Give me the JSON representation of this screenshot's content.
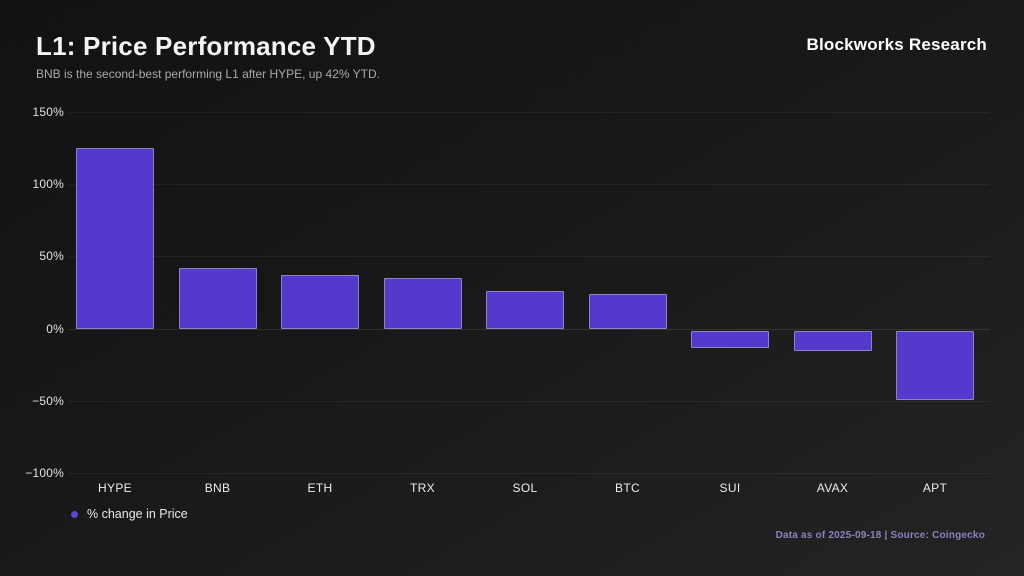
{
  "header": {
    "title": "L1: Price Performance YTD",
    "subtitle": "BNB is the second-best performing L1 after HYPE, up 42% YTD.",
    "brand": "Blockworks Research"
  },
  "legend": {
    "label": "% change in Price",
    "marker_color": "#5b45d4"
  },
  "footer": {
    "note": "Data as of 2025-09-18 | Source: Coingecko"
  },
  "colors": {
    "bar_fill": "#5538cc",
    "bar_border": "#bebebe",
    "background_dark": "#141414",
    "background_light": "#242424",
    "footer_text": "#8a83bd"
  },
  "chart_data": {
    "type": "bar",
    "title": "L1: Price Performance YTD",
    "xlabel": "",
    "ylabel": "% change in Price",
    "categories": [
      "HYPE",
      "BNB",
      "ETH",
      "TRX",
      "SOL",
      "BTC",
      "SUI",
      "AVAX",
      "APT"
    ],
    "values": [
      125,
      42,
      37,
      35,
      26,
      24,
      -12,
      -14,
      -48
    ],
    "unit": "%",
    "ylim": [
      -100,
      150
    ],
    "yticks": [
      {
        "value": 150,
        "label": "150%"
      },
      {
        "value": 100,
        "label": "100%"
      },
      {
        "value": 50,
        "label": "50%"
      },
      {
        "value": 0,
        "label": "0%"
      },
      {
        "value": -50,
        "label": "−50%"
      },
      {
        "value": -100,
        "label": "−100%"
      }
    ],
    "grid": true,
    "legend_position": "bottom-left",
    "series_color": "#5538cc"
  }
}
